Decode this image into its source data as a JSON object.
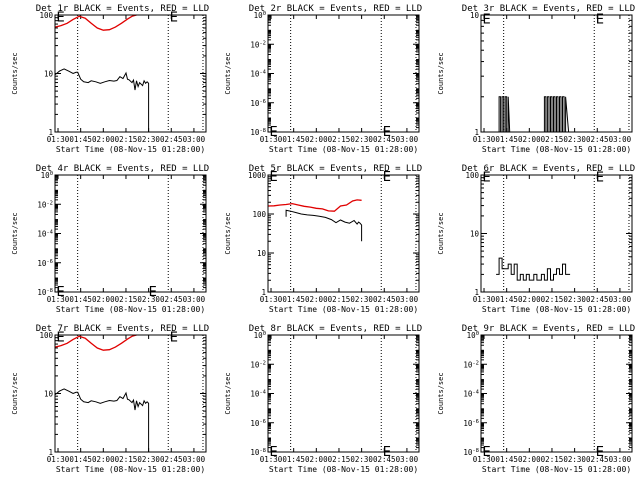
{
  "x_ticks": [
    "01:30",
    "01:45",
    "02:00",
    "02:15",
    "02:30",
    "02:45",
    "03:00"
  ],
  "xlabel": "Start Time (08-Nov-15 01:28:00)",
  "ylabel": "Counts/sec",
  "marker_label": "E",
  "colors": {
    "events": "#000000",
    "lld": "#e00000"
  },
  "chart_data": [
    {
      "type": "line",
      "title": "Det 1r BLACK = Events, RED = LLD",
      "x_range": [
        "01:28",
        "03:08"
      ],
      "y_scale": "log",
      "ylim": [
        1,
        100
      ],
      "y_ticks": [
        "1",
        "10",
        "100"
      ],
      "vlines": [
        "01:43",
        "02:43",
        "03:06"
      ],
      "markers": [
        [
          "01:29",
          95
        ],
        [
          "02:44",
          95
        ]
      ],
      "series": [
        {
          "name": "LLD",
          "color": "red",
          "x": [
            "01:28",
            "01:32",
            "01:36",
            "01:40",
            "01:44",
            "01:48",
            "01:52",
            "01:56",
            "02:00",
            "02:04",
            "02:08",
            "02:12",
            "02:16",
            "02:19",
            "02:22"
          ],
          "values": [
            62,
            66,
            72,
            84,
            95,
            88,
            72,
            60,
            55,
            56,
            62,
            72,
            85,
            95,
            100
          ]
        },
        {
          "name": "Events",
          "color": "black",
          "x": [
            "01:28",
            "01:28",
            "01:31",
            "01:34",
            "01:37",
            "01:40",
            "01:42",
            "01:43",
            "01:45",
            "01:47",
            "01:50",
            "01:52",
            "01:55",
            "01:58",
            "02:01",
            "02:04",
            "02:07",
            "02:09",
            "02:11",
            "02:13",
            "02:15",
            "02:16",
            "02:17",
            "02:19",
            "02:20",
            "02:21",
            "02:22",
            "02:23",
            "02:24",
            "02:26",
            "02:27",
            "02:28",
            "02:29",
            "02:30",
            "02:30"
          ],
          "values": [
            7.5,
            9.5,
            11,
            12,
            11,
            10,
            10.5,
            10.5,
            8,
            7.2,
            7,
            7.5,
            7.2,
            6.8,
            7.2,
            7.6,
            7.4,
            7.6,
            8.8,
            8.2,
            10.2,
            8,
            7.8,
            7,
            7.7,
            5.2,
            7.5,
            6,
            7,
            6.2,
            7.5,
            6.8,
            7.2,
            6.8,
            1
          ]
        }
      ]
    },
    {
      "type": "line",
      "title": "Det 2r BLACK = Events, RED = LLD",
      "x_range": [
        "01:28",
        "03:08"
      ],
      "y_scale": "log",
      "ylim": [
        1e-08,
        1
      ],
      "y_ticks": [
        "10^0",
        "10^-2",
        "10^-4",
        "10^-6",
        "10^-8"
      ],
      "vlines": [
        "01:43",
        "02:43",
        "03:06"
      ],
      "markers": [
        [
          "01:29",
          1.2e-08
        ],
        [
          "02:44",
          1.2e-08
        ]
      ],
      "series": []
    },
    {
      "type": "line",
      "title": "Det 3r BLACK = Events, RED = LLD",
      "x_range": [
        "01:28",
        "03:08"
      ],
      "y_scale": "log",
      "ylim": [
        1,
        10
      ],
      "y_ticks": [
        "1",
        "10"
      ],
      "vlines": [
        "01:43",
        "02:43",
        "03:06"
      ],
      "markers": [
        [
          "01:29",
          9.3
        ],
        [
          "02:44",
          9.3
        ]
      ],
      "series": [
        {
          "name": "Events",
          "color": "black",
          "x": [
            "01:40",
            "01:40",
            "01:41",
            "01:41",
            "01:42",
            "01:42",
            "01:43",
            "01:43",
            "01:44",
            "01:44",
            "01:45",
            "01:45",
            "01:46",
            "01:46",
            "01:47",
            "02:10",
            "02:10",
            "02:11",
            "02:11",
            "02:12",
            "02:12",
            "02:13",
            "02:13",
            "02:14",
            "02:14",
            "02:15",
            "02:15",
            "02:16",
            "02:16",
            "02:17",
            "02:17",
            "02:18",
            "02:18",
            "02:19",
            "02:19",
            "02:20",
            "02:20",
            "02:21",
            "02:21",
            "02:22",
            "02:22",
            "02:23",
            "02:23",
            "02:24",
            "02:24",
            "02:26"
          ],
          "values": [
            1,
            2,
            2,
            1,
            1,
            2,
            2,
            1,
            1,
            2,
            2,
            1,
            1,
            2,
            1,
            1,
            2,
            2,
            1,
            1,
            2,
            2,
            1,
            1,
            2,
            2,
            1,
            1,
            2,
            2,
            1,
            1,
            2,
            2,
            1,
            1,
            2,
            2,
            1,
            1,
            2,
            2,
            1,
            1,
            2,
            1
          ]
        }
      ]
    },
    {
      "type": "line",
      "title": "Det 4r BLACK = Events, RED = LLD",
      "x_range": [
        "01:28",
        "03:08"
      ],
      "y_scale": "log",
      "ylim": [
        1e-08,
        1
      ],
      "y_ticks": [
        "10^0",
        "10^-2",
        "10^-4",
        "10^-6",
        "10^-8"
      ],
      "vlines": [
        "01:43",
        "02:43",
        "03:06"
      ],
      "markers": [
        [
          "01:29",
          1.2e-08
        ],
        [
          "02:30",
          1.2e-08
        ]
      ],
      "series": []
    },
    {
      "type": "line",
      "title": "Det 5r BLACK = Events, RED = LLD",
      "x_range": [
        "01:28",
        "03:08"
      ],
      "y_scale": "log",
      "ylim": [
        1,
        1000
      ],
      "y_ticks": [
        "1",
        "10",
        "100",
        "1000"
      ],
      "vlines": [
        "01:43",
        "02:43",
        "03:06"
      ],
      "markers": [
        [
          "01:29",
          950
        ],
        [
          "02:44",
          950
        ]
      ],
      "series": [
        {
          "name": "LLD",
          "color": "red",
          "x": [
            "01:28",
            "01:32",
            "01:36",
            "01:40",
            "01:44",
            "01:48",
            "01:52",
            "01:56",
            "02:00",
            "02:04",
            "02:08",
            "02:12",
            "02:16",
            "02:20",
            "02:24",
            "02:27",
            "02:30"
          ],
          "values": [
            160,
            162,
            170,
            175,
            185,
            170,
            158,
            150,
            140,
            135,
            120,
            118,
            160,
            170,
            215,
            230,
            225
          ]
        },
        {
          "name": "Events",
          "color": "black",
          "x": [
            "01:40",
            "01:40",
            "01:43",
            "01:46",
            "01:50",
            "01:54",
            "01:58",
            "02:02",
            "02:06",
            "02:10",
            "02:13",
            "02:16",
            "02:19",
            "02:22",
            "02:25",
            "02:27",
            "02:28",
            "02:29",
            "02:30",
            "02:30"
          ],
          "values": [
            85,
            125,
            118,
            110,
            100,
            95,
            92,
            88,
            82,
            72,
            60,
            70,
            62,
            58,
            68,
            55,
            62,
            58,
            52,
            20
          ]
        }
      ]
    },
    {
      "type": "line",
      "title": "Det 6r BLACK = Events, RED = LLD",
      "x_range": [
        "01:28",
        "03:08"
      ],
      "y_scale": "log",
      "ylim": [
        1,
        100
      ],
      "y_ticks": [
        "1",
        "10",
        "100"
      ],
      "vlines": [
        "01:43",
        "02:43",
        "03:06"
      ],
      "markers": [
        [
          "01:29",
          95
        ],
        [
          "02:44",
          95
        ]
      ],
      "series": [
        {
          "name": "Events",
          "color": "black",
          "x": [
            "01:38",
            "01:40",
            "01:40",
            "01:42",
            "01:42",
            "01:46",
            "01:46",
            "01:48",
            "01:48",
            "01:50",
            "01:50",
            "01:52",
            "01:52",
            "01:54",
            "01:54",
            "01:56",
            "01:56",
            "01:58",
            "01:58",
            "02:00",
            "02:00",
            "02:03",
            "02:03",
            "02:05",
            "02:05",
            "02:08",
            "02:08",
            "02:10",
            "02:10",
            "02:12",
            "02:12",
            "02:14",
            "02:14",
            "02:16",
            "02:16",
            "02:18",
            "02:18",
            "02:20",
            "02:20",
            "02:22",
            "02:22",
            "02:24",
            "02:24",
            "02:27"
          ],
          "values": [
            2,
            2,
            3.8,
            3.8,
            2.5,
            2.5,
            3,
            3,
            2,
            2,
            3,
            3,
            1.6,
            1.6,
            2,
            2,
            1.6,
            1.6,
            2,
            2,
            1.6,
            1.6,
            2,
            2,
            1.6,
            1.6,
            2,
            2,
            1.6,
            1.6,
            2.5,
            2.5,
            1.6,
            1.6,
            2,
            2,
            2.5,
            2.5,
            2,
            2,
            3,
            3,
            2,
            2
          ]
        }
      ]
    },
    {
      "type": "line",
      "title": "Det 7r BLACK = Events, RED = LLD",
      "x_range": [
        "01:28",
        "03:08"
      ],
      "y_scale": "log",
      "ylim": [
        1,
        100
      ],
      "y_ticks": [
        "1",
        "10",
        "100"
      ],
      "vlines": [
        "01:43",
        "02:43",
        "03:06"
      ],
      "markers": [
        [
          "01:29",
          95
        ],
        [
          "02:44",
          95
        ]
      ],
      "series": [
        {
          "name": "LLD",
          "color": "red",
          "x": [
            "01:28",
            "01:32",
            "01:36",
            "01:40",
            "01:44",
            "01:48",
            "01:52",
            "01:56",
            "02:00",
            "02:04",
            "02:08",
            "02:12",
            "02:16",
            "02:19",
            "02:22"
          ],
          "values": [
            62,
            66,
            72,
            84,
            95,
            88,
            72,
            60,
            55,
            56,
            62,
            72,
            85,
            95,
            100
          ]
        },
        {
          "name": "Events",
          "color": "black",
          "x": [
            "01:28",
            "01:28",
            "01:31",
            "01:34",
            "01:37",
            "01:40",
            "01:42",
            "01:43",
            "01:45",
            "01:47",
            "01:50",
            "01:52",
            "01:55",
            "01:58",
            "02:01",
            "02:04",
            "02:07",
            "02:09",
            "02:11",
            "02:13",
            "02:15",
            "02:16",
            "02:17",
            "02:19",
            "02:20",
            "02:21",
            "02:22",
            "02:23",
            "02:24",
            "02:26",
            "02:27",
            "02:28",
            "02:29",
            "02:30",
            "02:30"
          ],
          "values": [
            7.5,
            9.5,
            11,
            12,
            11,
            10,
            10.5,
            10.5,
            8,
            7.2,
            7,
            7.5,
            7.2,
            6.8,
            7.2,
            7.6,
            7.4,
            7.6,
            8.8,
            8.2,
            10.2,
            8,
            7.8,
            7,
            7.7,
            5.2,
            7.5,
            6,
            7,
            6.2,
            7.5,
            6.8,
            7.2,
            6.8,
            1
          ]
        }
      ]
    },
    {
      "type": "line",
      "title": "Det 8r BLACK = Events, RED = LLD",
      "x_range": [
        "01:28",
        "03:08"
      ],
      "y_scale": "log",
      "ylim": [
        1e-08,
        1
      ],
      "y_ticks": [
        "10^0",
        "10^-2",
        "10^-4",
        "10^-6",
        "10^-8"
      ],
      "vlines": [
        "01:43",
        "02:43",
        "03:06"
      ],
      "markers": [
        [
          "01:29",
          1.2e-08
        ],
        [
          "02:44",
          1.2e-08
        ]
      ],
      "series": []
    },
    {
      "type": "line",
      "title": "Det 9r BLACK = Events, RED = LLD",
      "x_range": [
        "01:28",
        "03:08"
      ],
      "y_scale": "log",
      "ylim": [
        1e-08,
        1
      ],
      "y_ticks": [
        "10^0",
        "10^-2",
        "10^-4",
        "10^-6",
        "10^-8"
      ],
      "vlines": [
        "01:43",
        "02:43",
        "03:06"
      ],
      "markers": [
        [
          "01:29",
          1.2e-08
        ],
        [
          "02:44",
          1.2e-08
        ]
      ],
      "series": []
    }
  ]
}
